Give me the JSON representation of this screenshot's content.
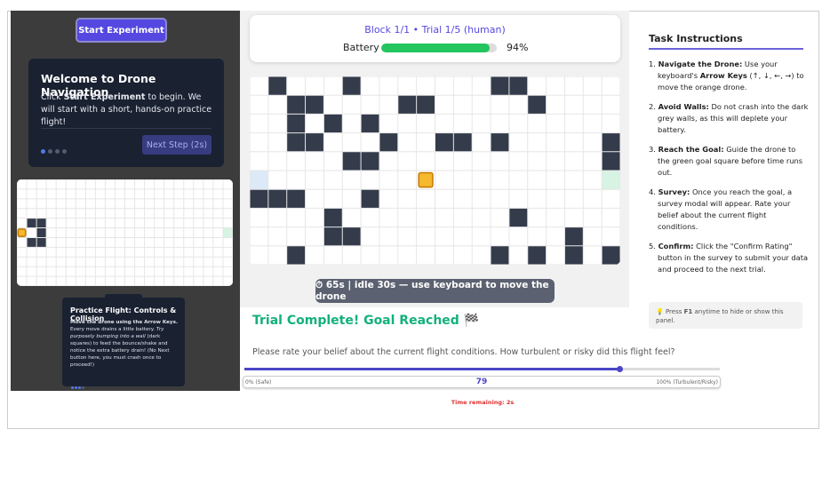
{
  "start_button": "Start Experiment",
  "tutorial": {
    "title": "Welcome to Drone Navigation",
    "body_before": "Click ",
    "body_bold": "Start Experiment",
    "body_after": " to begin. We will start with a short, hands-on practice flight!",
    "next_button": "Next Step (2s)"
  },
  "practice": {
    "title": "Practice Flight: Controls & Collision",
    "bold": "Move the drone using the Arrow Keys.",
    "text1": " Every move drains a little battery. ",
    "italic": "Try purposely bumping into a wall",
    "text2": " (dark squares) to feed the bounce/shake and notice the extra battery drain! (No Next button here, you must crash once to proceed!)"
  },
  "header": {
    "title": "Block 1/1 • Trial 1/5 (human)",
    "battery_label": "Battery",
    "battery": {
      "value": 94,
      "label": "94%"
    }
  },
  "timer": "⏱ 65s | idle 30s — use keyboard to move the drone",
  "result": "Trial Complete! Goal Reached 🏁",
  "survey": {
    "question": "Please rate your belief about the current flight conditions. How turbulent or risky did this flight feel?",
    "min_label": "0% (Safe)",
    "value": 79,
    "max_label": "100% (Turbulent/Risky)",
    "time_remaining": "Time remaining: 2s"
  },
  "instructions": {
    "title": "Task Instructions",
    "items": [
      {
        "marker": "1.",
        "title": "Navigate the Drone:",
        "text": " Use your keyboard's ",
        "bold": "Arrow Keys",
        "text_after": " (↑, ↓, ←, →) to move the orange drone."
      },
      {
        "marker": "2.",
        "title": "Avoid Walls:",
        "text": " Do not crash into the dark grey walls, as this will deplete your battery."
      },
      {
        "marker": "3.",
        "title": "Reach the Goal:",
        "text": " Guide the drone to the green goal square before time runs out."
      },
      {
        "marker": "4.",
        "title": "Survey:",
        "text": " Once you reach the goal, a survey modal will appear. Rate your belief about the current flight conditions."
      },
      {
        "marker": "5.",
        "title": "Confirm:",
        "text": " Click the \"Confirm Rating\" button in the survey to submit your data and proceed to the next trial."
      }
    ],
    "help_before": "💡 Press ",
    "help_bold": "F1",
    "help_after": " anytime to hide or show this panel."
  }
}
